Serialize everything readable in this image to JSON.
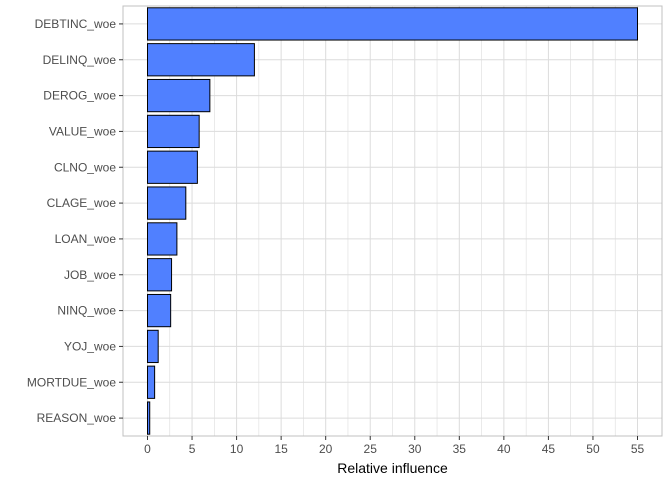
{
  "chart_data": {
    "type": "bar",
    "orientation": "horizontal",
    "categories": [
      "DEBTINC_woe",
      "DELINQ_woe",
      "DEROG_woe",
      "VALUE_woe",
      "CLNO_woe",
      "CLAGE_woe",
      "LOAN_woe",
      "JOB_woe",
      "NINQ_woe",
      "YOJ_woe",
      "MORTDUE_woe",
      "REASON_woe"
    ],
    "values": [
      55.0,
      12.0,
      7.0,
      5.8,
      5.6,
      4.3,
      3.3,
      2.7,
      2.6,
      1.2,
      0.8,
      0.25
    ],
    "title": "",
    "xlabel": "Relative influence",
    "ylabel": "",
    "xlim": [
      -2.75,
      57.75
    ],
    "xticks": [
      0,
      5,
      10,
      15,
      20,
      25,
      30,
      35,
      40,
      45,
      50,
      55
    ],
    "grid": true,
    "legend": "none",
    "colors": {
      "bar_fill": "#5080FF",
      "bar_stroke": "#000000",
      "grid": "#DCDCDC",
      "border": "#C0C0C0"
    }
  }
}
